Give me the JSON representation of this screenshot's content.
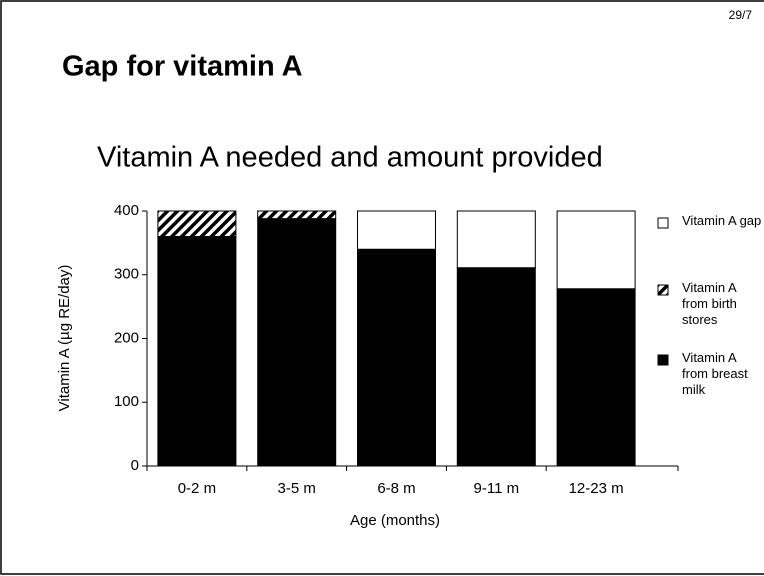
{
  "page_number": "29/7",
  "slide_title": "Gap for vitamin A",
  "chart_data": {
    "type": "stacked_bar",
    "title": "Vitamin A needed and amount provided",
    "x_label": "Age (months)",
    "y_label": "Vitamin A (µg RE/day)",
    "categories": [
      "0-2 m",
      "3-5 m",
      "6-8 m",
      "9-11 m",
      "12-23 m"
    ],
    "series": [
      {
        "name": "Vitamin A from breast milk",
        "color": "#000000",
        "values": [
          360,
          388,
          340,
          311,
          278
        ]
      },
      {
        "name": "Vitamin A from birth stores",
        "color": "#000000",
        "hatch": true,
        "values": [
          40,
          12,
          0,
          0,
          0
        ]
      },
      {
        "name": "Vitamin A gap",
        "color": "#ffffff",
        "values": [
          0,
          0,
          60,
          89,
          122
        ]
      }
    ],
    "ylim": [
      0,
      400
    ],
    "yticks": [
      0,
      100,
      200,
      300,
      400
    ],
    "legend": "right"
  }
}
